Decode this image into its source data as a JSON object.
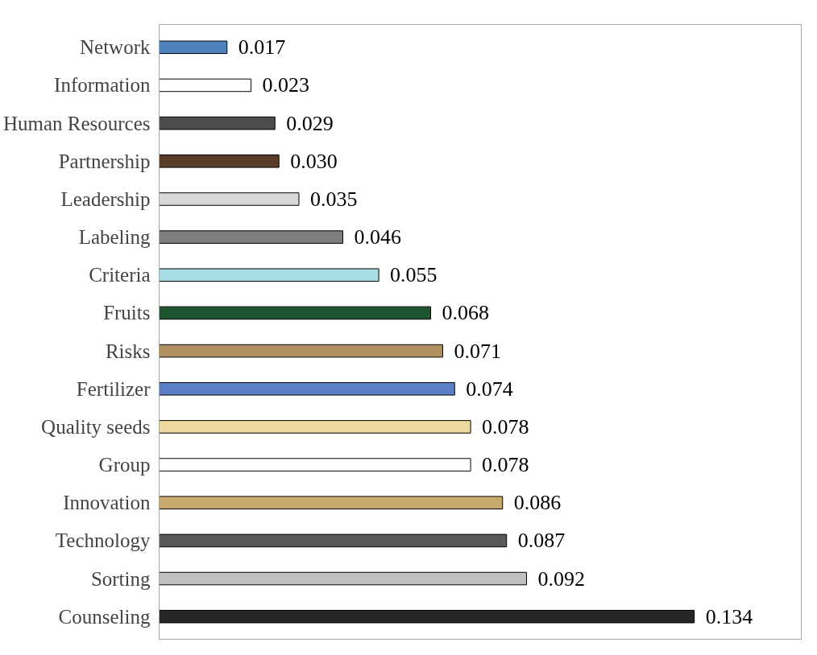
{
  "chart_data": {
    "type": "bar",
    "orientation": "horizontal",
    "grid": false,
    "categories": [
      "Network",
      "Information",
      "Human Resources",
      "Partnership",
      "Leadership",
      "Labeling",
      "Criteria",
      "Fruits",
      "Risks",
      "Fertilizer",
      "Quality seeds",
      "Group",
      "Innovation",
      "Technology",
      "Sorting",
      "Counseling"
    ],
    "values": [
      0.017,
      0.023,
      0.029,
      0.03,
      0.035,
      0.046,
      0.055,
      0.068,
      0.071,
      0.074,
      0.078,
      0.078,
      0.086,
      0.087,
      0.092,
      0.134
    ],
    "value_labels": [
      "0.017",
      "0.023",
      "0.029",
      "0.030",
      "0.035",
      "0.046",
      "0.055",
      "0.068",
      "0.071",
      "0.074",
      "0.078",
      "0.078",
      "0.086",
      "0.087",
      "0.092",
      "0.134"
    ],
    "colors": [
      "#4f81bd",
      "#ffffff",
      "#4d4d4d",
      "#5a3d28",
      "#d9d9d9",
      "#7f7f7f",
      "#a8dde6",
      "#1e5631",
      "#b09060",
      "#5b7fc7",
      "#ecd9a0",
      "#ffffff",
      "#c8aa6e",
      "#595959",
      "#bfbfbf",
      "#262626"
    ]
  }
}
